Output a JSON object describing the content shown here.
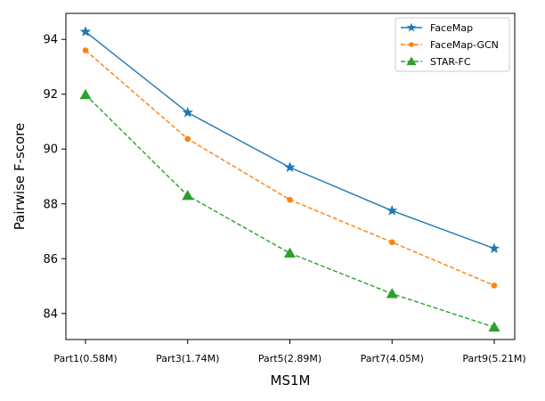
{
  "chart_data": {
    "type": "line",
    "xlabel": "MS1M",
    "ylabel": "Pairwise  F-score",
    "categories": [
      "Part1(0.58M)",
      "Part3(1.74M)",
      "Part5(2.89M)",
      "Part7(4.05M)",
      "Part9(5.21M)"
    ],
    "ylim": [
      83.05,
      94.95
    ],
    "yticks": [
      84,
      86,
      88,
      90,
      92,
      94
    ],
    "grid": false,
    "legend_position": "top-right",
    "series": [
      {
        "name": "FaceMap",
        "values": [
          94.28,
          91.33,
          89.33,
          87.75,
          86.37
        ],
        "color": "#1f77b4",
        "marker": "star",
        "linestyle": "solid"
      },
      {
        "name": "FaceMap-GCN",
        "values": [
          93.6,
          90.37,
          88.15,
          86.6,
          85.02
        ],
        "color": "#ff7f0e",
        "marker": "circle",
        "linestyle": "dashed"
      },
      {
        "name": "STAR-FC",
        "values": [
          91.98,
          88.3,
          86.2,
          84.72,
          83.5
        ],
        "color": "#2ca02c",
        "marker": "triangle",
        "linestyle": "dashed"
      }
    ]
  }
}
